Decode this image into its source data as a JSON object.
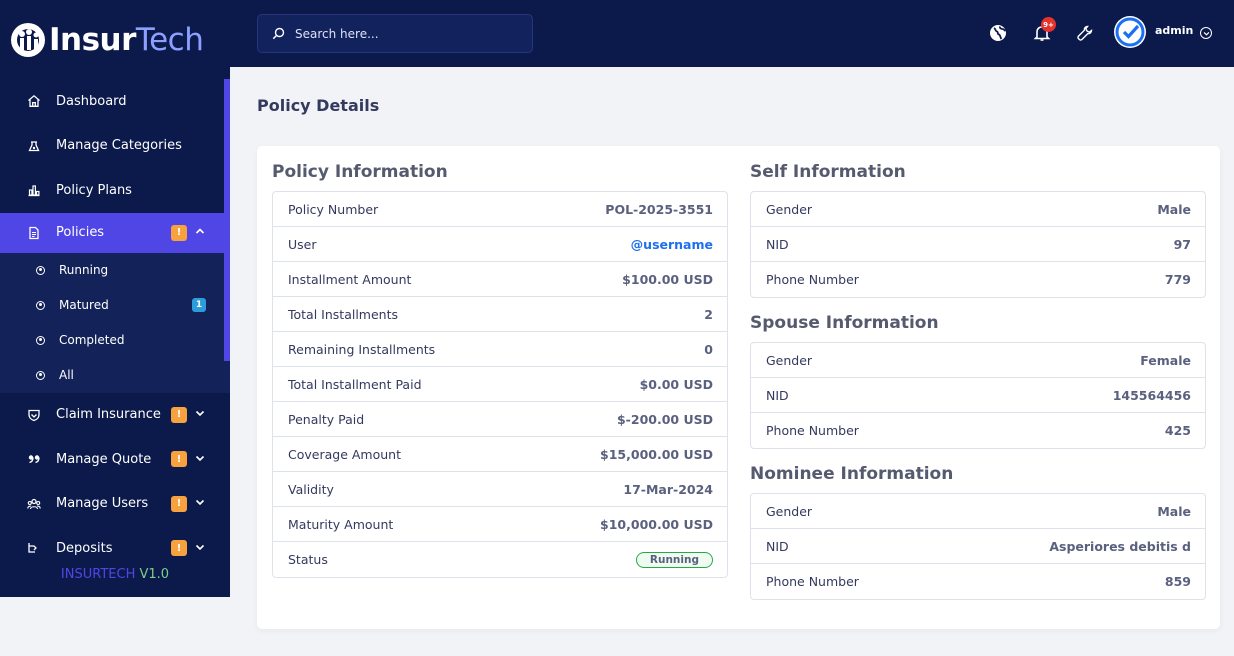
{
  "brand": {
    "name_part1": "Insur",
    "name_part2": "Tech"
  },
  "sidebar": {
    "items": [
      {
        "label": "Dashboard",
        "icon": "home-icon"
      },
      {
        "label": "Manage Categories",
        "icon": "categories-icon"
      },
      {
        "label": "Policy Plans",
        "icon": "chart-icon"
      },
      {
        "label": "Policies",
        "icon": "document-icon",
        "badge": "!"
      },
      {
        "label": "Claim Insurance",
        "icon": "shield-icon",
        "badge": "!"
      },
      {
        "label": "Manage Quote",
        "icon": "quote-icon",
        "badge": "!"
      },
      {
        "label": "Manage Users",
        "icon": "users-icon",
        "badge": "!"
      },
      {
        "label": "Deposits",
        "icon": "deposit-icon",
        "badge": "!"
      }
    ],
    "submenu": [
      {
        "label": "Running"
      },
      {
        "label": "Matured",
        "badge": "1"
      },
      {
        "label": "Completed"
      },
      {
        "label": "All"
      }
    ],
    "version_prefix": "INSURTECH",
    "version": "V1.0"
  },
  "topbar": {
    "search_placeholder": "Search here...",
    "notification_badge": "9+",
    "admin_name": "admin"
  },
  "page": {
    "title": "Policy Details"
  },
  "policy_info": {
    "title": "Policy Information",
    "rows": [
      {
        "label": "Policy Number",
        "value": "POL-2025-3551"
      },
      {
        "label": "User",
        "value": "@username"
      },
      {
        "label": "Installment Amount",
        "value": "$100.00 USD"
      },
      {
        "label": "Total Installments",
        "value": "2"
      },
      {
        "label": "Remaining Installments",
        "value": "0"
      },
      {
        "label": "Total Installment Paid",
        "value": "$0.00 USD"
      },
      {
        "label": "Penalty Paid",
        "value": "$-200.00 USD"
      },
      {
        "label": "Coverage Amount",
        "value": "$15,000.00 USD"
      },
      {
        "label": "Validity",
        "value": "17-Mar-2024"
      },
      {
        "label": "Maturity Amount",
        "value": "$10,000.00 USD"
      },
      {
        "label": "Status",
        "value": "Running"
      }
    ]
  },
  "self_info": {
    "title": "Self Information",
    "rows": [
      {
        "label": "Gender",
        "value": "Male"
      },
      {
        "label": "NID",
        "value": "97"
      },
      {
        "label": "Phone Number",
        "value": "779"
      }
    ]
  },
  "spouse_info": {
    "title": "Spouse Information",
    "rows": [
      {
        "label": "Gender",
        "value": "Female"
      },
      {
        "label": "NID",
        "value": "145564456"
      },
      {
        "label": "Phone Number",
        "value": "425"
      }
    ]
  },
  "nominee_info": {
    "title": "Nominee Information",
    "rows": [
      {
        "label": "Gender",
        "value": "Male"
      },
      {
        "label": "NID",
        "value": "Asperiores debitis d"
      },
      {
        "label": "Phone Number",
        "value": "859"
      }
    ]
  },
  "colors": {
    "sidebar_bg": "#0c1a4b",
    "accent": "#4f46e5",
    "warning_badge": "#f8a13f",
    "info_badge": "#2d9cdb",
    "link": "#1d6ff2",
    "status_success": "#28a745"
  }
}
